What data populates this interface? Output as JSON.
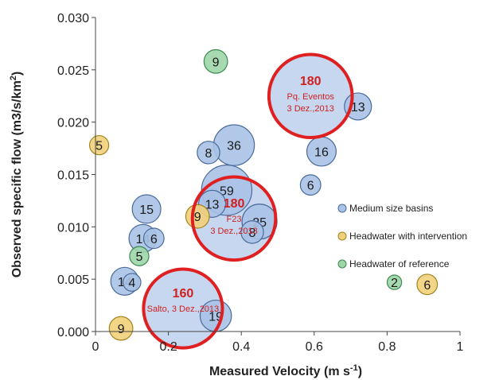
{
  "chart_data": {
    "type": "scatter",
    "xlabel": "Measured Velocity (m s",
    "xlabel_sup": "-1",
    "xlabel_close": ")",
    "ylabel": "Observed specific flow (m3/s/km",
    "ylabel_sup": "2",
    "ylabel_close": ")",
    "xlim": [
      0,
      1
    ],
    "ylim": [
      0,
      0.03
    ],
    "x_ticks": [
      0,
      0.2,
      0.4,
      0.6,
      0.8,
      1
    ],
    "x_tick_labels": [
      "0",
      "0.2",
      "0.4",
      "0.6",
      "0.8",
      "1"
    ],
    "y_ticks": [
      0,
      0.005,
      0.01,
      0.015,
      0.02,
      0.025,
      0.03
    ],
    "y_tick_labels": [
      "0.000",
      "0.005",
      "0.010",
      "0.015",
      "0.020",
      "0.025",
      "0.030"
    ],
    "series": [
      {
        "name": "Medium size basins",
        "color": "#a9c2e6",
        "stroke": "#4a6a9a",
        "points": [
          {
            "x": 0.72,
            "y": 0.0215,
            "size": 13,
            "label": "13"
          },
          {
            "x": 0.38,
            "y": 0.0178,
            "size": 36,
            "label": "36"
          },
          {
            "x": 0.31,
            "y": 0.0171,
            "size": 8,
            "label": "8"
          },
          {
            "x": 0.62,
            "y": 0.0172,
            "size": 16,
            "label": "16"
          },
          {
            "x": 0.59,
            "y": 0.014,
            "size": 6,
            "label": "6"
          },
          {
            "x": 0.36,
            "y": 0.0135,
            "size": 59,
            "label": "59"
          },
          {
            "x": 0.14,
            "y": 0.0117,
            "size": 15,
            "label": "15"
          },
          {
            "x": 0.32,
            "y": 0.0122,
            "size": 13,
            "label": "13"
          },
          {
            "x": 0.45,
            "y": 0.0105,
            "size": 25,
            "label": "25"
          },
          {
            "x": 0.43,
            "y": 0.0095,
            "size": 8,
            "label": "8"
          },
          {
            "x": 0.13,
            "y": 0.0089,
            "size": 14,
            "label": "14"
          },
          {
            "x": 0.16,
            "y": 0.0089,
            "size": 6,
            "label": "6"
          },
          {
            "x": 0.08,
            "y": 0.0048,
            "size": 14,
            "label": "14"
          },
          {
            "x": 0.1,
            "y": 0.0047,
            "size": 4,
            "label": "4"
          },
          {
            "x": 0.33,
            "y": 0.0015,
            "size": 19,
            "label": "19"
          }
        ]
      },
      {
        "name": "Headwater with intervention",
        "color": "#f2d07a",
        "stroke": "#a08420",
        "points": [
          {
            "x": 0.01,
            "y": 0.0178,
            "size": 5,
            "label": "5"
          },
          {
            "x": 0.28,
            "y": 0.011,
            "size": 9,
            "label": "9"
          },
          {
            "x": 0.91,
            "y": 0.0045,
            "size": 6,
            "label": "6"
          },
          {
            "x": 0.07,
            "y": 0.0003,
            "size": 9,
            "label": "9"
          }
        ]
      },
      {
        "name": "Headwater of  reference",
        "color": "#9ed6a8",
        "stroke": "#3d8a50",
        "points": [
          {
            "x": 0.33,
            "y": 0.0258,
            "size": 9,
            "label": "9"
          },
          {
            "x": 0.12,
            "y": 0.0072,
            "size": 5,
            "label": "5"
          },
          {
            "x": 0.82,
            "y": 0.0047,
            "size": 2,
            "label": "2"
          }
        ]
      }
    ],
    "highlighted_events": [
      {
        "x": 0.59,
        "y": 0.0225,
        "size": 180,
        "number": "180",
        "lines": [
          "Pq. Eventos",
          "3 Dez.,2013"
        ]
      },
      {
        "x": 0.38,
        "y": 0.0108,
        "size": 180,
        "number": "180",
        "lines": [
          "F23",
          "3 Dez.,2013"
        ]
      },
      {
        "x": 0.24,
        "y": 0.0022,
        "size": 160,
        "number": "160",
        "lines": [
          "Salto, 3 Dez.,2013"
        ]
      }
    ],
    "highlight_color": "#e02020",
    "legend": {
      "position": "right",
      "entries": [
        "Medium size basins",
        "Headwater with intervention",
        "Headwater of  reference"
      ]
    },
    "grid": false
  }
}
